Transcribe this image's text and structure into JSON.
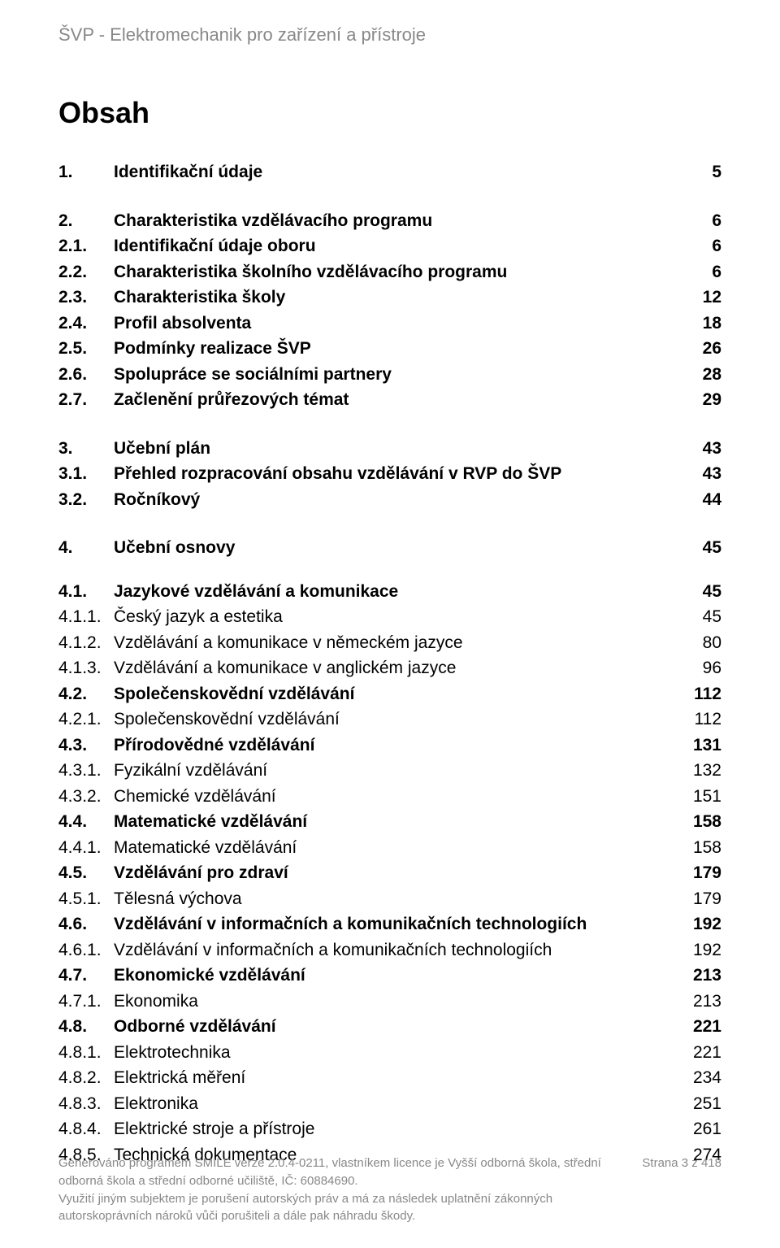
{
  "running_header": "ŠVP - Elektromechanik pro zařízení a přístroje",
  "title": "Obsah",
  "toc": [
    {
      "num": "1.",
      "label": "Identifikační údaje",
      "page": "5",
      "bold": true
    },
    {
      "gap": "lg"
    },
    {
      "num": "2.",
      "label": "Charakteristika vzdělávacího programu",
      "page": "6",
      "bold": true
    },
    {
      "num": "2.1.",
      "label": "Identifikační údaje oboru",
      "page": "6",
      "bold": true
    },
    {
      "num": "2.2.",
      "label": "Charakteristika školního vzdělávacího programu",
      "page": "6",
      "bold": true
    },
    {
      "num": "2.3.",
      "label": "Charakteristika školy",
      "page": "12",
      "bold": true
    },
    {
      "num": "2.4.",
      "label": "Profil absolventa",
      "page": "18",
      "bold": true
    },
    {
      "num": "2.5.",
      "label": "Podmínky realizace ŠVP",
      "page": "26",
      "bold": true
    },
    {
      "num": "2.6.",
      "label": "Spolupráce se sociálními partnery",
      "page": "28",
      "bold": true
    },
    {
      "num": "2.7.",
      "label": "Začlenění průřezových témat",
      "page": "29",
      "bold": true
    },
    {
      "gap": "lg"
    },
    {
      "num": "3.",
      "label": "Učební plán",
      "page": "43",
      "bold": true
    },
    {
      "num": "3.1.",
      "label": "Přehled rozpracování obsahu vzdělávání v RVP do ŠVP",
      "page": "43",
      "bold": true
    },
    {
      "num": "3.2.",
      "label": "Ročníkový",
      "page": "44",
      "bold": true
    },
    {
      "gap": "lg"
    },
    {
      "num": "4.",
      "label": "Učební osnovy",
      "page": "45",
      "bold": true
    },
    {
      "gap": "sm"
    },
    {
      "num": "4.1.",
      "label": "Jazykové vzdělávání a komunikace",
      "page": "45",
      "bold": true
    },
    {
      "num": "4.1.1.",
      "label": "Český jazyk a estetika",
      "page": "45",
      "bold": false
    },
    {
      "num": "4.1.2.",
      "label": "Vzdělávání a komunikace v německém jazyce",
      "page": "80",
      "bold": false
    },
    {
      "num": "4.1.3.",
      "label": "Vzdělávání a komunikace v anglickém jazyce",
      "page": "96",
      "bold": false
    },
    {
      "num": "4.2.",
      "label": "Společenskovědní vzdělávání",
      "page": "112",
      "bold": true
    },
    {
      "num": "4.2.1.",
      "label": "Společenskovědní vzdělávání",
      "page": "112",
      "bold": false
    },
    {
      "num": "4.3.",
      "label": "Přírodovědné vzdělávání",
      "page": "131",
      "bold": true
    },
    {
      "num": "4.3.1.",
      "label": "Fyzikální vzdělávání",
      "page": "132",
      "bold": false
    },
    {
      "num": "4.3.2.",
      "label": "Chemické vzdělávání",
      "page": "151",
      "bold": false
    },
    {
      "num": "4.4.",
      "label": "Matematické vzdělávání",
      "page": "158",
      "bold": true
    },
    {
      "num": "4.4.1.",
      "label": "Matematické vzdělávání",
      "page": "158",
      "bold": false
    },
    {
      "num": "4.5.",
      "label": "Vzdělávání pro zdraví",
      "page": "179",
      "bold": true
    },
    {
      "num": "4.5.1.",
      "label": "Tělesná výchova",
      "page": "179",
      "bold": false
    },
    {
      "num": "4.6.",
      "label": "Vzdělávání v informačních a komunikačních technologiích",
      "page": "192",
      "bold": true
    },
    {
      "num": "4.6.1.",
      "label": "Vzdělávání v informačních a komunikačních technologiích",
      "page": "192",
      "bold": false
    },
    {
      "num": "4.7.",
      "label": "Ekonomické vzdělávání",
      "page": "213",
      "bold": true
    },
    {
      "num": "4.7.1.",
      "label": "Ekonomika",
      "page": "213",
      "bold": false
    },
    {
      "num": "4.8.",
      "label": "Odborné vzdělávání",
      "page": "221",
      "bold": true
    },
    {
      "num": "4.8.1.",
      "label": "Elektrotechnika",
      "page": "221",
      "bold": false
    },
    {
      "num": "4.8.2.",
      "label": "Elektrická měření",
      "page": "234",
      "bold": false
    },
    {
      "num": "4.8.3.",
      "label": "Elektronika",
      "page": "251",
      "bold": false
    },
    {
      "num": "4.8.4.",
      "label": "Elektrické stroje a přístroje",
      "page": "261",
      "bold": false
    },
    {
      "num": "4.8.5.",
      "label": "Technická dokumentace",
      "page": "274",
      "bold": false
    }
  ],
  "footer": {
    "generated1": "Generováno programem SMILE verze 2.0.4-0211, vlastníkem licence je Vyšší odborná škola, střední",
    "generated2": "odborná škola a střední odborné učiliště, IČ: 60884690.",
    "generated3": "Využití jiným subjektem je porušení autorských práv a má za následek uplatnění zákonných",
    "generated4": "autorskoprávních nároků vůči porušiteli a dále pak náhradu škody.",
    "page_label": "Strana 3 z 418"
  }
}
